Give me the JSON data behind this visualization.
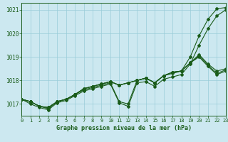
{
  "title": "Graphe pression niveau de la mer (hPa)",
  "background_color": "#cce8f0",
  "grid_color": "#99ccd9",
  "line_color": "#1a5c1a",
  "xlim": [
    0,
    23
  ],
  "ylim": [
    1016.5,
    1021.3
  ],
  "yticks": [
    1017,
    1018,
    1019,
    1020,
    1021
  ],
  "xticks": [
    0,
    1,
    2,
    3,
    4,
    5,
    6,
    7,
    8,
    9,
    10,
    11,
    12,
    13,
    14,
    15,
    16,
    17,
    18,
    19,
    20,
    21,
    22,
    23
  ],
  "series": [
    [
      1017.2,
      1017.1,
      1016.9,
      1016.8,
      1017.1,
      1017.2,
      1017.4,
      1017.6,
      1017.7,
      1017.8,
      1017.9,
      1017.1,
      1017.0,
      1018.0,
      1018.1,
      1017.9,
      1018.2,
      1018.3,
      1018.4,
      1019.0,
      1019.9,
      1020.6,
      1021.05,
      1021.1
    ],
    [
      1017.2,
      1017.0,
      1016.85,
      1016.75,
      1017.05,
      1017.15,
      1017.35,
      1017.55,
      1017.65,
      1017.75,
      1017.85,
      1017.05,
      1016.9,
      1017.9,
      1017.95,
      1017.75,
      1018.05,
      1018.15,
      1018.25,
      1018.7,
      1019.5,
      1020.2,
      1020.75,
      1021.0
    ],
    [
      1017.2,
      1017.1,
      1016.9,
      1016.85,
      1017.1,
      1017.2,
      1017.4,
      1017.65,
      1017.75,
      1017.85,
      1017.95,
      1017.8,
      1017.9,
      1018.0,
      1018.1,
      1017.9,
      1018.2,
      1018.35,
      1018.4,
      1018.75,
      1019.1,
      1018.7,
      1018.4,
      1018.5
    ],
    [
      1017.2,
      1017.1,
      1016.9,
      1016.85,
      1017.1,
      1017.2,
      1017.4,
      1017.65,
      1017.75,
      1017.85,
      1017.95,
      1017.8,
      1017.9,
      1018.0,
      1018.1,
      1017.9,
      1018.2,
      1018.35,
      1018.4,
      1018.75,
      1019.05,
      1018.65,
      1018.3,
      1018.45
    ],
    [
      1017.2,
      1017.1,
      1016.9,
      1016.85,
      1017.1,
      1017.2,
      1017.4,
      1017.65,
      1017.75,
      1017.85,
      1017.95,
      1017.8,
      1017.9,
      1018.0,
      1018.1,
      1017.9,
      1018.2,
      1018.35,
      1018.4,
      1018.75,
      1019.0,
      1018.6,
      1018.25,
      1018.4
    ]
  ]
}
